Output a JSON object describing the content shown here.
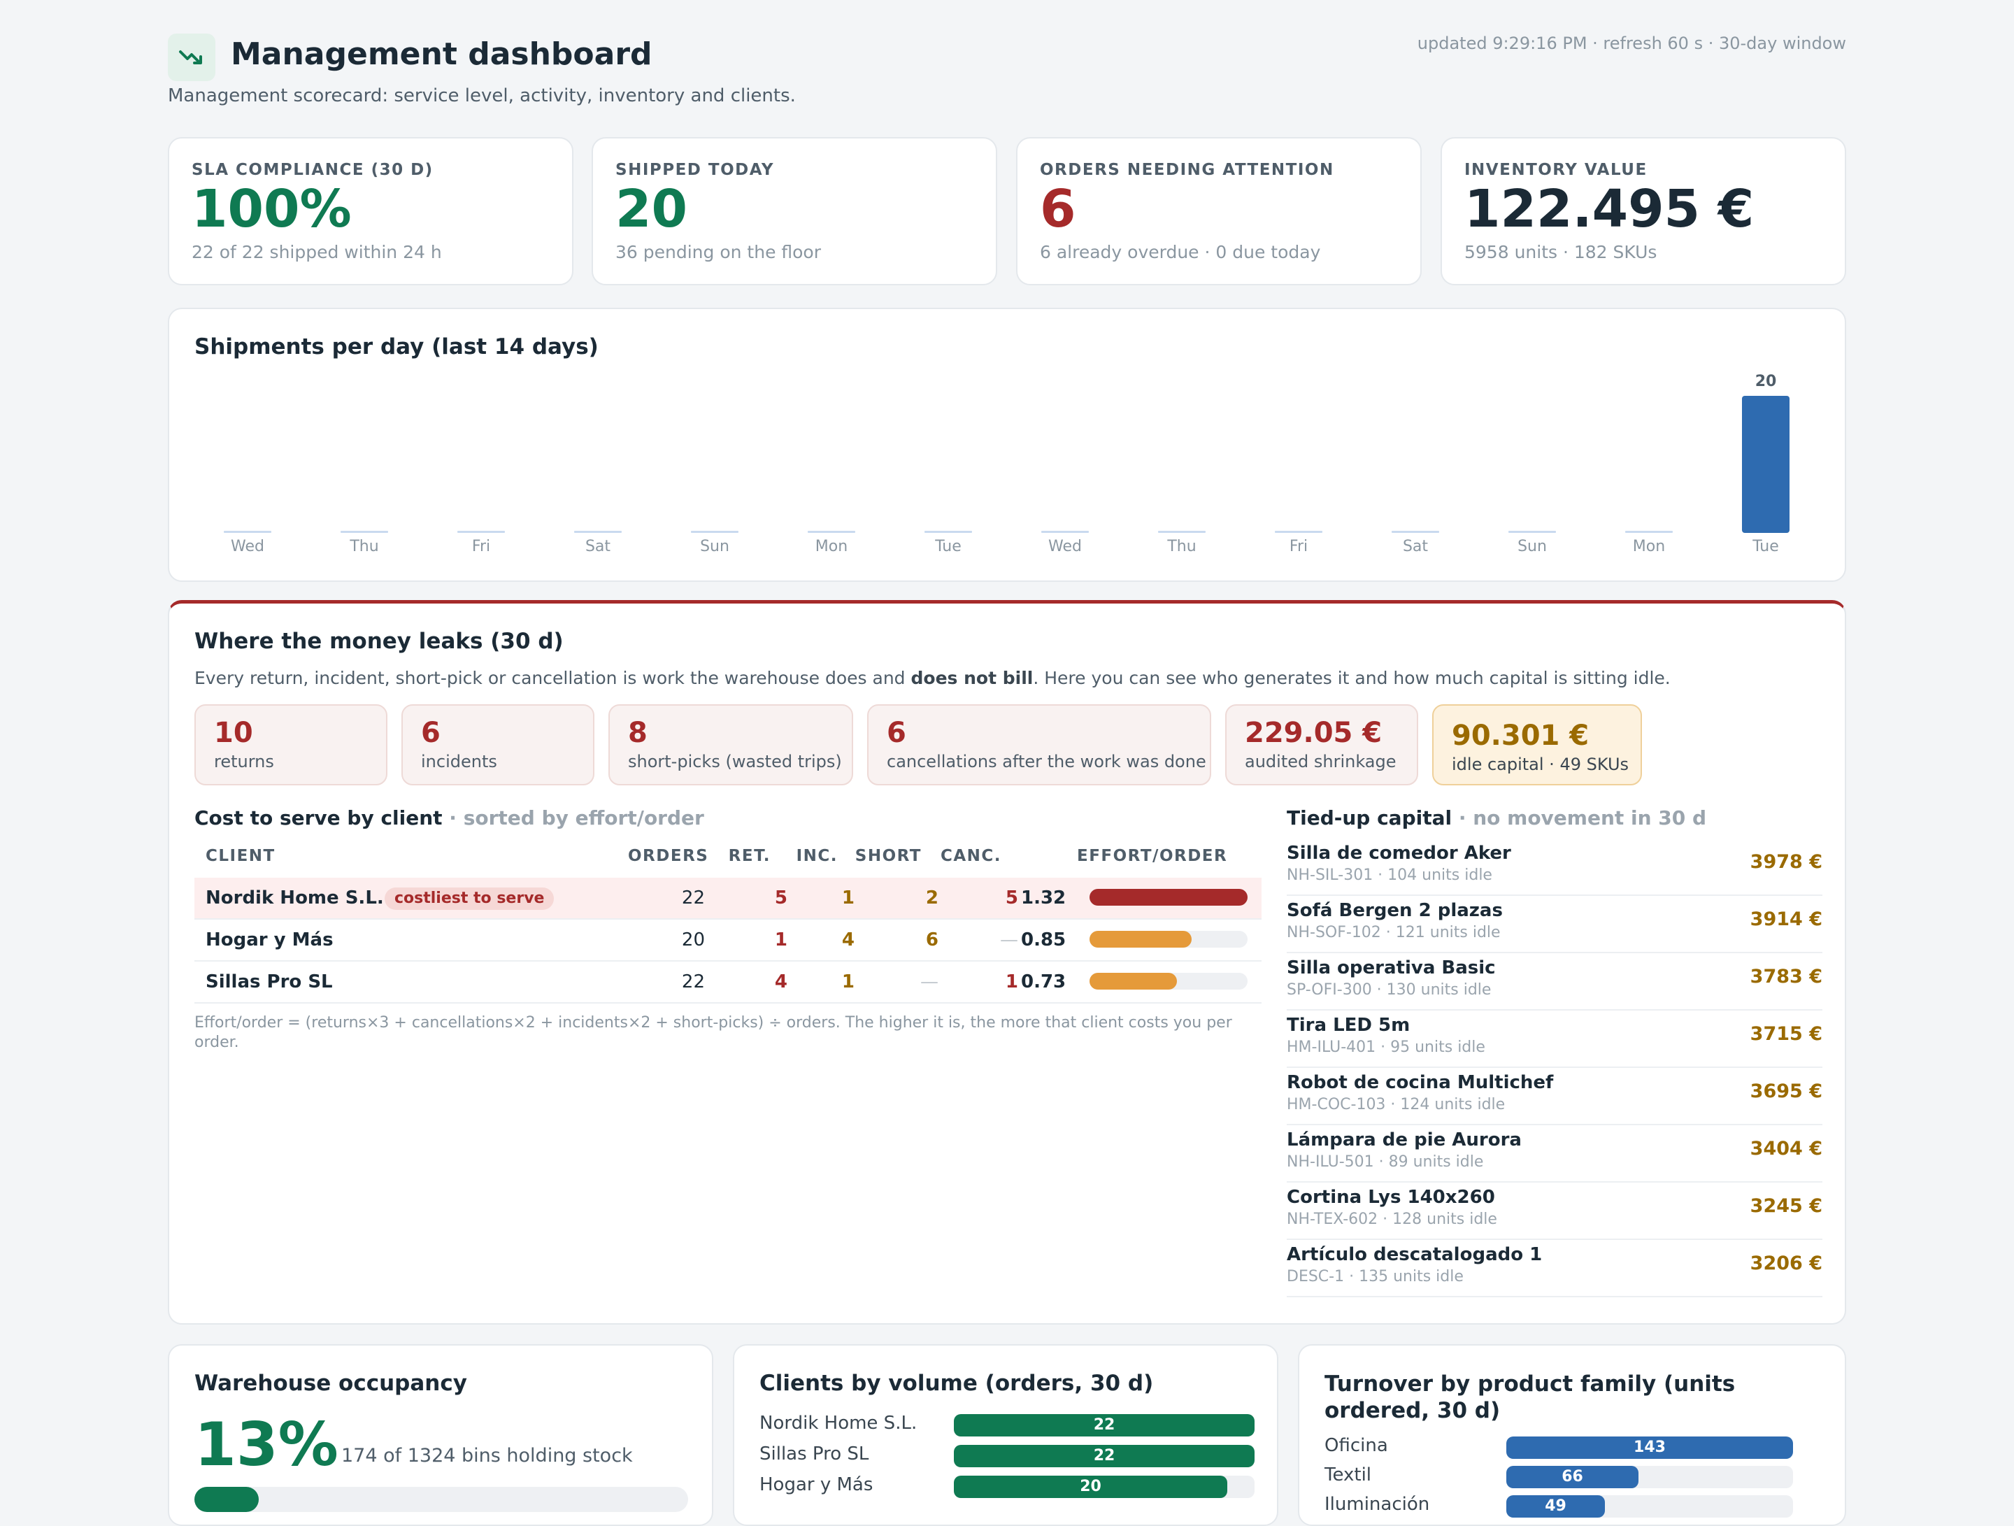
{
  "header": {
    "title": "Management dashboard",
    "subtitle": "Management scorecard: service level, activity, inventory and clients.",
    "meta": "updated 9:29:16 PM · refresh 60 s · 30-day window"
  },
  "kpis": [
    {
      "label": "SLA COMPLIANCE (30 D)",
      "value": "100%",
      "note": "22 of 22 shipped within 24 h",
      "color": "#0f7a52"
    },
    {
      "label": "SHIPPED TODAY",
      "value": "20",
      "note": "36 pending on the floor",
      "color": "#0f7a52"
    },
    {
      "label": "ORDERS NEEDING ATTENTION",
      "value": "6",
      "note": "6 already overdue · 0 due today",
      "color": "#a52a2a"
    },
    {
      "label": "INVENTORY VALUE",
      "value": "122.495 €",
      "note": "5958 units · 182 SKUs",
      "color": "#1b2a36"
    }
  ],
  "shipments": {
    "title": "Shipments per day (last 14 days)",
    "chart_data": {
      "type": "bar",
      "categories": [
        "Wed",
        "Thu",
        "Fri",
        "Sat",
        "Sun",
        "Mon",
        "Tue",
        "Wed",
        "Thu",
        "Fri",
        "Sat",
        "Sun",
        "Mon",
        "Tue"
      ],
      "values": [
        0,
        0,
        0,
        0,
        0,
        0,
        0,
        0,
        0,
        0,
        0,
        0,
        0,
        20
      ],
      "ylim": [
        0,
        20
      ],
      "grid": false,
      "colors": {
        "bar": "#2e6bb0",
        "empty": "#c9daef"
      }
    }
  },
  "leaks": {
    "title": "Where the money leaks (30 d)",
    "desc_pre": "Every return, incident, short-pick or cancellation is work the warehouse does and ",
    "desc_bold": "does not bill",
    "desc_post": ". Here you can see who generates it and how much capital is sitting idle.",
    "boxes": [
      {
        "value": "10",
        "label": "returns"
      },
      {
        "value": "6",
        "label": "incidents"
      },
      {
        "value": "8",
        "label": "short-picks (wasted trips)"
      },
      {
        "value": "6",
        "label": "cancellations after the work was done"
      },
      {
        "value": "229.05 €",
        "label": "audited shrinkage"
      },
      {
        "value": "90.301 €",
        "label": "idle capital · 49 SKUs"
      }
    ],
    "cost_title": "Cost to serve by client",
    "cost_sub": " · sorted by effort/order",
    "columns": [
      "CLIENT",
      "ORDERS",
      "RET.",
      "INC.",
      "SHORT",
      "CANC.",
      "EFFORT/ORDER"
    ],
    "rows": [
      {
        "client": "Nordik Home S.L.",
        "badge": "costliest to serve",
        "orders": "22",
        "ret": "5",
        "inc": "1",
        "short": "2",
        "canc": "5",
        "effort": "1.32",
        "effort_fraction": 1.0,
        "bar_color": "#a52a2a"
      },
      {
        "client": "Hogar y Más",
        "badge": "",
        "orders": "20",
        "ret": "1",
        "inc": "4",
        "short": "6",
        "canc": "—",
        "effort": "0.85",
        "effort_fraction": 0.644,
        "bar_color": "#e59a3a"
      },
      {
        "client": "Sillas Pro SL",
        "badge": "",
        "orders": "22",
        "ret": "4",
        "inc": "1",
        "short": "—",
        "canc": "1",
        "effort": "0.73",
        "effort_fraction": 0.553,
        "bar_color": "#e59a3a"
      }
    ],
    "footnote": "Effort/order = (returns×3 + cancellations×2 + incidents×2 + short-picks) ÷ orders. The higher it is, the more that client costs you per order.",
    "capital_title": "Tied-up capital",
    "capital_sub": " · no movement in 30 d",
    "capital": [
      {
        "name": "Silla de comedor Aker",
        "sub": "NH-SIL-301 · 104 units idle",
        "value": "3978 €"
      },
      {
        "name": "Sofá Bergen 2 plazas",
        "sub": "NH-SOF-102 · 121 units idle",
        "value": "3914 €"
      },
      {
        "name": "Silla operativa Basic",
        "sub": "SP-OFI-300 · 130 units idle",
        "value": "3783 €"
      },
      {
        "name": "Tira LED 5m",
        "sub": "HM-ILU-401 · 95 units idle",
        "value": "3715 €"
      },
      {
        "name": "Robot de cocina Multichef",
        "sub": "HM-COC-103 · 124 units idle",
        "value": "3695 €"
      },
      {
        "name": "Lámpara de pie Aurora",
        "sub": "NH-ILU-501 · 89 units idle",
        "value": "3404 €"
      },
      {
        "name": "Cortina Lys 140x260",
        "sub": "NH-TEX-602 · 128 units idle",
        "value": "3245 €"
      },
      {
        "name": "Artículo descatalogado 1",
        "sub": "DESC-1 · 135 units idle",
        "value": "3206 €"
      }
    ]
  },
  "occupancy": {
    "title": "Warehouse occupancy",
    "value": "13%",
    "note": "174 of 1324 bins holding stock",
    "fraction": 0.13
  },
  "clients_volume": {
    "title": "Clients by volume (orders, 30 d)",
    "items": [
      {
        "label": "Nordik Home S.L.",
        "value": "22",
        "fraction": 1.0
      },
      {
        "label": "Sillas Pro SL",
        "value": "22",
        "fraction": 1.0
      },
      {
        "label": "Hogar y Más",
        "value": "20",
        "fraction": 0.909
      }
    ],
    "color": "#0f7a52"
  },
  "turnover": {
    "title_line1": "Turnover by product family (units",
    "title_line2": "ordered, 30 d)",
    "items": [
      {
        "label": "Oficina",
        "value": "143",
        "fraction": 1.0
      },
      {
        "label": "Textil",
        "value": "66",
        "fraction": 0.462
      },
      {
        "label": "Iluminación",
        "value": "49",
        "fraction": 0.343
      }
    ],
    "color": "#2e6bb0"
  }
}
